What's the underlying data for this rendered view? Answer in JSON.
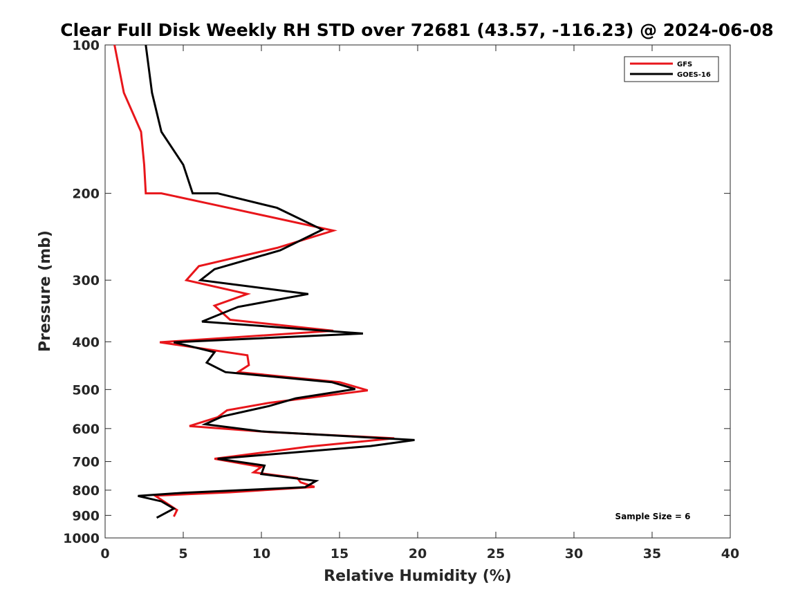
{
  "chart_data": {
    "type": "line",
    "title": "Clear Full Disk Weekly RH STD over 72681 (43.57, -116.23) @ 2024-06-08",
    "xlabel": "Relative Humidity (%)",
    "ylabel": "Pressure (mb)",
    "xlim": [
      0,
      40
    ],
    "ylim": [
      1000,
      100
    ],
    "y_scale": "log",
    "y_reversed": true,
    "x_ticks": [
      0,
      5,
      10,
      15,
      20,
      25,
      30,
      35,
      40
    ],
    "x_tick_labels": [
      "0",
      "5",
      "10",
      "15",
      "20",
      "25",
      "30",
      "35",
      "40"
    ],
    "y_ticks": [
      100,
      200,
      300,
      400,
      500,
      600,
      700,
      800,
      900,
      1000
    ],
    "y_tick_labels": [
      "100",
      "200",
      "300",
      "400",
      "500",
      "600",
      "700",
      "800",
      "900",
      "1000"
    ],
    "grid": false,
    "legend_position": "top-right",
    "annotation": "Sample Size = 6",
    "series": [
      {
        "name": "GFS",
        "color": "#e8161b",
        "points": [
          [
            0.6,
            100
          ],
          [
            1.2,
            125
          ],
          [
            2.3,
            150
          ],
          [
            2.5,
            175
          ],
          [
            2.6,
            200
          ],
          [
            3.6,
            200
          ],
          [
            7.0,
            211
          ],
          [
            14.6,
            238
          ],
          [
            11.0,
            258
          ],
          [
            6.0,
            281
          ],
          [
            5.2,
            300
          ],
          [
            9.1,
            320
          ],
          [
            7.0,
            338
          ],
          [
            8.0,
            361
          ],
          [
            14.6,
            380
          ],
          [
            3.5,
            401
          ],
          [
            9.1,
            426
          ],
          [
            9.2,
            446
          ],
          [
            8.5,
            461
          ],
          [
            15.0,
            483
          ],
          [
            16.8,
            502
          ],
          [
            10.5,
            532
          ],
          [
            7.8,
            551
          ],
          [
            7.2,
            569
          ],
          [
            5.4,
            593
          ],
          [
            10.5,
            610
          ],
          [
            18.5,
            628
          ],
          [
            13.0,
            653
          ],
          [
            7.0,
            691
          ],
          [
            10.0,
            718
          ],
          [
            9.5,
            736
          ],
          [
            12.3,
            756
          ],
          [
            12.5,
            771
          ],
          [
            13.4,
            788
          ],
          [
            8.0,
            808
          ],
          [
            3.2,
            821
          ],
          [
            3.8,
            845
          ],
          [
            4.6,
            878
          ],
          [
            4.4,
            905
          ]
        ]
      },
      {
        "name": "GOES-16",
        "color": "#000000",
        "points": [
          [
            2.6,
            100
          ],
          [
            3.0,
            125
          ],
          [
            3.6,
            150
          ],
          [
            5.0,
            175
          ],
          [
            5.6,
            200
          ],
          [
            7.2,
            200
          ],
          [
            11.0,
            214
          ],
          [
            13.9,
            237
          ],
          [
            11.2,
            261
          ],
          [
            7.0,
            285
          ],
          [
            6.1,
            300
          ],
          [
            13.0,
            320
          ],
          [
            8.5,
            340
          ],
          [
            6.2,
            364
          ],
          [
            16.5,
            385
          ],
          [
            4.4,
            401
          ],
          [
            7.0,
            420
          ],
          [
            6.5,
            441
          ],
          [
            7.7,
            461
          ],
          [
            14.5,
            483
          ],
          [
            16.0,
            499
          ],
          [
            12.2,
            521
          ],
          [
            10.5,
            540
          ],
          [
            7.5,
            567
          ],
          [
            6.4,
            588
          ],
          [
            10.0,
            608
          ],
          [
            19.8,
            633
          ],
          [
            17.0,
            651
          ],
          [
            7.2,
            691
          ],
          [
            10.2,
            713
          ],
          [
            10.0,
            742
          ],
          [
            13.5,
            766
          ],
          [
            12.8,
            789
          ],
          [
            5.0,
            810
          ],
          [
            2.1,
            822
          ],
          [
            3.6,
            843
          ],
          [
            4.4,
            872
          ],
          [
            3.3,
            910
          ]
        ]
      }
    ]
  }
}
